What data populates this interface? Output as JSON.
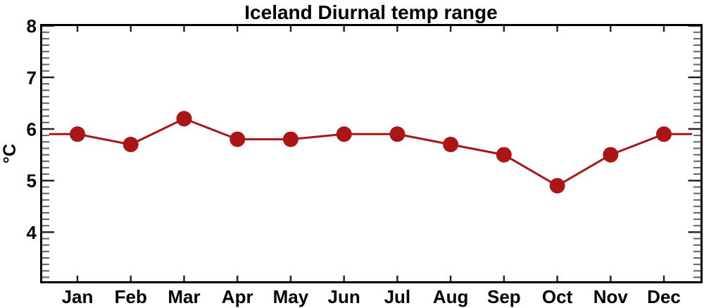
{
  "figure": {
    "title": "Iceland Diurnal temp range"
  },
  "chart_data": {
    "type": "line",
    "title": "Iceland Diurnal temp range",
    "xlabel": "",
    "ylabel": "°C",
    "categories": [
      "Jan",
      "Feb",
      "Mar",
      "Apr",
      "May",
      "Jun",
      "Jul",
      "Aug",
      "Sep",
      "Oct",
      "Nov",
      "Dec"
    ],
    "values": [
      5.9,
      5.7,
      6.2,
      5.8,
      5.8,
      5.9,
      5.9,
      5.7,
      5.5,
      4.9,
      5.5,
      5.9
    ],
    "ylim": [
      3,
      8
    ],
    "yticks": [
      4,
      5,
      6,
      7,
      8
    ],
    "ytick_labels": [
      "4",
      "5",
      "6",
      "7",
      "8"
    ],
    "minor_tick_step": 0.125,
    "grid": false,
    "legend": "none",
    "marker": "filled-circle",
    "edge_line_values": {
      "left": 5.9,
      "right": 5.9
    },
    "colors": {
      "line": "#AA1515",
      "marker": "#AA1515",
      "axis": "#000000",
      "text": "#000000",
      "background": "#FFFFFF"
    }
  }
}
